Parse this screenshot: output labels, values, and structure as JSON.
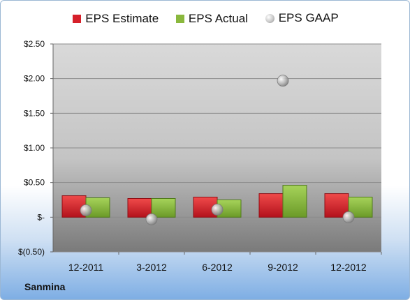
{
  "company": "Sanmina",
  "colors": {
    "estimate": "#d6202a",
    "actual": "#8ab83d",
    "gaap": "#b5b5b5"
  },
  "chart_data": {
    "type": "bar",
    "title": "",
    "xlabel": "",
    "ylabel": "",
    "categories": [
      "12-2011",
      "3-2012",
      "6-2012",
      "9-2012",
      "12-2012"
    ],
    "series": [
      {
        "name": "EPS Estimate",
        "kind": "bar",
        "values": [
          0.31,
          0.27,
          0.29,
          0.34,
          0.34
        ]
      },
      {
        "name": "EPS Actual",
        "kind": "bar",
        "values": [
          0.28,
          0.27,
          0.25,
          0.46,
          0.29
        ]
      },
      {
        "name": "EPS GAAP",
        "kind": "scatter",
        "values": [
          0.1,
          -0.03,
          0.11,
          1.97,
          0.0
        ]
      }
    ],
    "ylim": [
      -0.5,
      2.5
    ],
    "yticks": [
      -0.5,
      0,
      0.5,
      1.0,
      1.5,
      2.0,
      2.5
    ],
    "ytick_labels": [
      "$(0.50)",
      "$-",
      "$0.50",
      "$1.00",
      "$1.50",
      "$2.00",
      "$2.50"
    ],
    "grid": true,
    "legend": "top"
  }
}
